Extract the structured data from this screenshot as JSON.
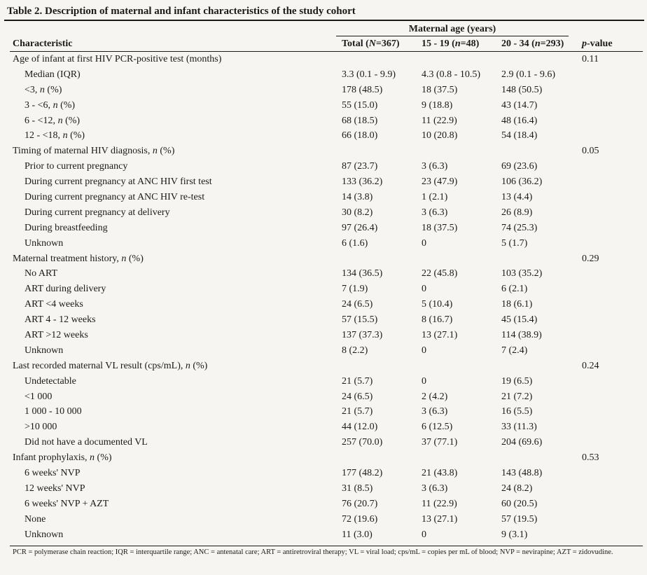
{
  "table": {
    "title": "Table 2. Description of maternal and infant characteristics of the study cohort",
    "group_header": "Maternal age (years)",
    "headers": {
      "characteristic": "Characteristic",
      "total": "Total (N=367)",
      "age_15_19": "15 - 19 (n=48)",
      "age_20_34": "20 - 34 (n=293)",
      "p_value": "p-value"
    },
    "rows": [
      {
        "label": "Age of infant at first HIV PCR-positive test (months)",
        "level": 0,
        "total": "",
        "y": "",
        "o": "",
        "p": "0.11"
      },
      {
        "label": "Median (IQR)",
        "level": 1,
        "total": "3.3 (0.1 - 9.9)",
        "y": "4.3 (0.8 - 10.5)",
        "o": "2.9 (0.1 - 9.6)",
        "p": ""
      },
      {
        "label": "<3, n (%)",
        "level": 1,
        "total": "178 (48.5)",
        "y": "18 (37.5)",
        "o": "148 (50.5)",
        "p": ""
      },
      {
        "label": "3 - <6, n (%)",
        "level": 1,
        "total": "55 (15.0)",
        "y": "9 (18.8)",
        "o": "43 (14.7)",
        "p": ""
      },
      {
        "label": "6 - <12, n (%)",
        "level": 1,
        "total": "68 (18.5)",
        "y": "11 (22.9)",
        "o": "48 (16.4)",
        "p": ""
      },
      {
        "label": "12 - <18, n (%)",
        "level": 1,
        "total": "66 (18.0)",
        "y": "10 (20.8)",
        "o": "54 (18.4)",
        "p": ""
      },
      {
        "label": "Timing of maternal HIV diagnosis, n (%)",
        "level": 0,
        "total": "",
        "y": "",
        "o": "",
        "p": "0.05"
      },
      {
        "label": "Prior to current pregnancy",
        "level": 1,
        "total": "87 (23.7)",
        "y": "3 (6.3)",
        "o": "69 (23.6)",
        "p": ""
      },
      {
        "label": "During current pregnancy at ANC HIV first test",
        "level": 1,
        "total": "133 (36.2)",
        "y": "23 (47.9)",
        "o": "106 (36.2)",
        "p": ""
      },
      {
        "label": "During current pregnancy at ANC HIV re-test",
        "level": 1,
        "total": "14 (3.8)",
        "y": "1 (2.1)",
        "o": "13 (4.4)",
        "p": ""
      },
      {
        "label": "During current pregnancy at delivery",
        "level": 1,
        "total": "30 (8.2)",
        "y": "3 (6.3)",
        "o": "26 (8.9)",
        "p": ""
      },
      {
        "label": "During breastfeeding",
        "level": 1,
        "total": "97 (26.4)",
        "y": "18 (37.5)",
        "o": "74 (25.3)",
        "p": ""
      },
      {
        "label": "Unknown",
        "level": 1,
        "total": "6 (1.6)",
        "y": "0",
        "o": "5 (1.7)",
        "p": ""
      },
      {
        "label": "Maternal treatment history, n (%)",
        "level": 0,
        "total": "",
        "y": "",
        "o": "",
        "p": "0.29"
      },
      {
        "label": "No ART",
        "level": 1,
        "total": "134 (36.5)",
        "y": "22 (45.8)",
        "o": "103 (35.2)",
        "p": ""
      },
      {
        "label": "ART during delivery",
        "level": 1,
        "total": "7 (1.9)",
        "y": "0",
        "o": "6 (2.1)",
        "p": ""
      },
      {
        "label": "ART <4 weeks",
        "level": 1,
        "total": "24 (6.5)",
        "y": "5 (10.4)",
        "o": "18 (6.1)",
        "p": ""
      },
      {
        "label": "ART 4 - 12 weeks",
        "level": 1,
        "total": "57 (15.5)",
        "y": "8 (16.7)",
        "o": "45 (15.4)",
        "p": ""
      },
      {
        "label": "ART >12 weeks",
        "level": 1,
        "total": "137 (37.3)",
        "y": "13 (27.1)",
        "o": "114 (38.9)",
        "p": ""
      },
      {
        "label": "Unknown",
        "level": 1,
        "total": "8 (2.2)",
        "y": "0",
        "o": "7 (2.4)",
        "p": ""
      },
      {
        "label": "Last recorded maternal VL result (cps/mL), n (%)",
        "level": 0,
        "total": "",
        "y": "",
        "o": "",
        "p": "0.24"
      },
      {
        "label": "Undetectable",
        "level": 1,
        "total": "21 (5.7)",
        "y": "0",
        "o": "19 (6.5)",
        "p": ""
      },
      {
        "label": "<1 000",
        "level": 1,
        "total": "24 (6.5)",
        "y": "2 (4.2)",
        "o": "21 (7.2)",
        "p": ""
      },
      {
        "label": "1 000 - 10 000",
        "level": 1,
        "total": "21 (5.7)",
        "y": "3 (6.3)",
        "o": "16 (5.5)",
        "p": ""
      },
      {
        "label": ">10 000",
        "level": 1,
        "total": "44 (12.0)",
        "y": "6 (12.5)",
        "o": "33 (11.3)",
        "p": ""
      },
      {
        "label": "Did not have a documented VL",
        "level": 1,
        "total": "257 (70.0)",
        "y": "37 (77.1)",
        "o": "204 (69.6)",
        "p": ""
      },
      {
        "label": "Infant prophylaxis, n (%)",
        "level": 0,
        "total": "",
        "y": "",
        "o": "",
        "p": "0.53"
      },
      {
        "label": "6 weeks' NVP",
        "level": 1,
        "total": "177 (48.2)",
        "y": "21 (43.8)",
        "o": "143 (48.8)",
        "p": ""
      },
      {
        "label": "12 weeks' NVP",
        "level": 1,
        "total": "31 (8.5)",
        "y": "3 (6.3)",
        "o": "24 (8.2)",
        "p": ""
      },
      {
        "label": "6 weeks' NVP + AZT",
        "level": 1,
        "total": "76 (20.7)",
        "y": "11 (22.9)",
        "o": "60 (20.5)",
        "p": ""
      },
      {
        "label": "None",
        "level": 1,
        "total": "72 (19.6)",
        "y": "13 (27.1)",
        "o": "57 (19.5)",
        "p": ""
      },
      {
        "label": "Unknown",
        "level": 1,
        "total": "11 (3.0)",
        "y": "0",
        "o": "9 (3.1)",
        "p": ""
      }
    ],
    "footnote": "PCR = polymerase chain reaction; IQR = interquartile range; ANC = antenatal care; ART = antiretroviral therapy; VL = viral load; cps/mL = copies per mL of blood; NVP = nevirapine; AZT = zidovudine."
  }
}
